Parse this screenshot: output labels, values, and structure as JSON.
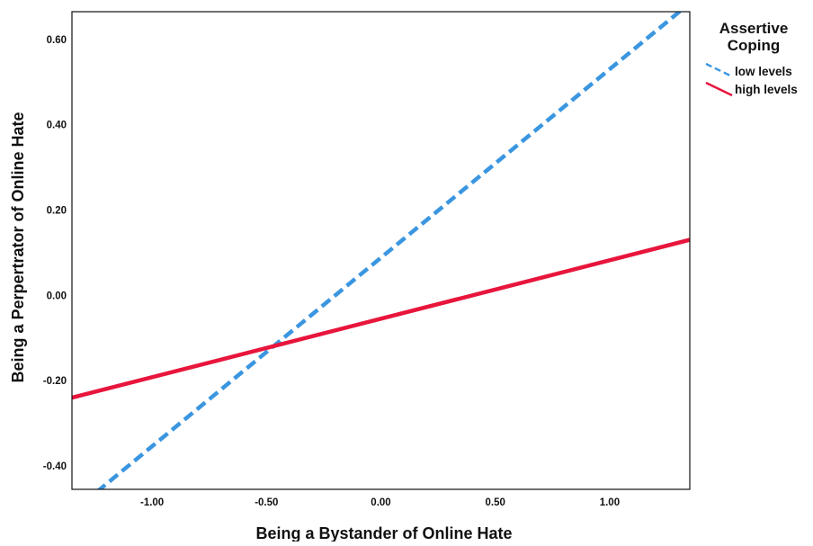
{
  "chart_data": {
    "type": "line",
    "xlabel": "Being a Bystander of Online Hate",
    "ylabel": "Being a Perpertrator of Online Hate",
    "xlim": [
      -1.35,
      1.35
    ],
    "ylim": [
      -0.455,
      0.665
    ],
    "x_ticks": [
      -1.0,
      -0.5,
      0.0,
      0.5,
      1.0
    ],
    "x_tick_labels": [
      "-1.00",
      "-0.50",
      "0.00",
      "0.50",
      "1.00"
    ],
    "y_ticks": [
      -0.4,
      -0.2,
      0.0,
      0.2,
      0.4,
      0.6
    ],
    "y_tick_labels": [
      "-0.40",
      "-0.20",
      "0.00",
      "0.20",
      "0.40",
      "0.60"
    ],
    "grid": false,
    "legend": {
      "title": "Assertive Coping",
      "title_lines": [
        "Assertive",
        "Coping"
      ],
      "placement": "top-right, outside plot"
    },
    "series": [
      {
        "name": "low levels",
        "color": "#3b96e0",
        "style": "dashed",
        "x": [
          -1.35,
          1.35
        ],
        "y": [
          -0.509,
          0.685
        ]
      },
      {
        "name": "high levels",
        "color": "#e8153c",
        "style": "solid",
        "x": [
          -1.35,
          1.35
        ],
        "y": [
          -0.24,
          0.13
        ]
      }
    ]
  }
}
